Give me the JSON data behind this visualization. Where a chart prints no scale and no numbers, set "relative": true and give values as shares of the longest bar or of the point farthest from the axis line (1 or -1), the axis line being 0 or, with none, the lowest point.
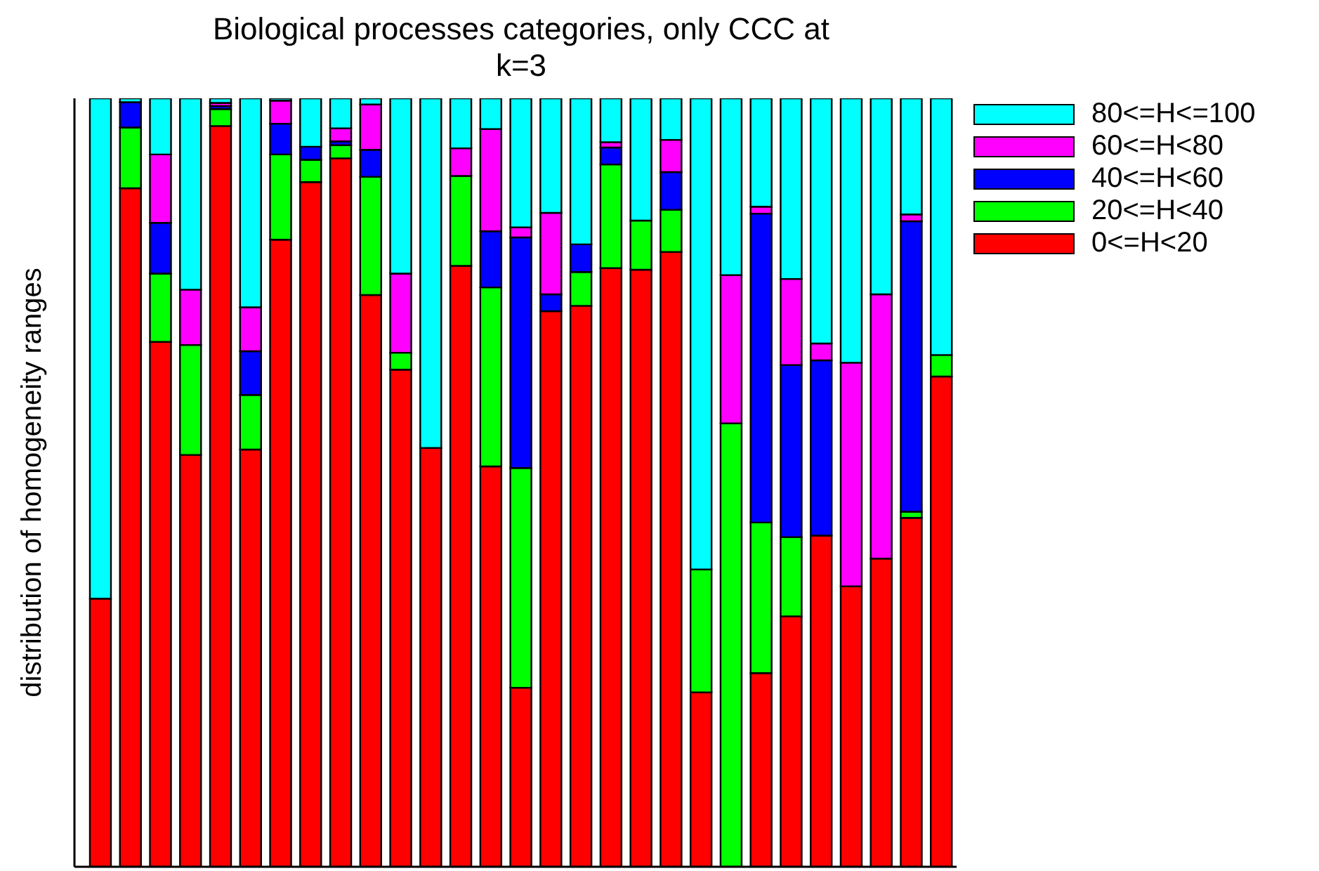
{
  "chart_data": {
    "type": "bar",
    "title": "Biological processes categories, only CCC at k=3",
    "ylabel": "distribution of homogeneity ranges",
    "relative": true,
    "stacked": true,
    "legend": "top right",
    "categories": [
      null,
      null,
      null,
      null,
      null,
      null,
      null,
      null,
      null,
      null,
      null,
      null,
      null,
      null,
      null,
      null,
      null,
      null,
      null,
      null,
      null,
      null,
      null,
      null,
      null,
      null,
      null,
      null,
      null
    ],
    "series": [
      {
        "name": "0<=H<20",
        "color": "#ff0000",
        "values": [
          0.349,
          0.883,
          0.683,
          0.536,
          0.964,
          0.543,
          0.816,
          0.891,
          0.922,
          0.744,
          0.647,
          0.545,
          0.782,
          0.521,
          0.233,
          0.723,
          0.73,
          0.779,
          0.777,
          0.8,
          0.227,
          0,
          0.252,
          0.326,
          0.431,
          0.365,
          0.401,
          0.454,
          0.638
        ]
      },
      {
        "name": "20<=H<40",
        "color": "#00ff00",
        "values": [
          0,
          0.079,
          0.089,
          0.143,
          0.022,
          0.071,
          0.111,
          0.029,
          0.017,
          0.154,
          0.022,
          0,
          0.117,
          0.233,
          0.286,
          0,
          0.044,
          0.135,
          0.064,
          0.055,
          0.16,
          0.577,
          0.196,
          0.103,
          0,
          0,
          0,
          0.008,
          0.028
        ]
      },
      {
        "name": "40<=H<60",
        "color": "#0000ff",
        "values": [
          0,
          0.033,
          0.066,
          0,
          0.004,
          0.057,
          0.04,
          0.017,
          0.005,
          0.035,
          0,
          0,
          0,
          0.073,
          0.3,
          0.022,
          0.036,
          0.022,
          0,
          0.049,
          0,
          0,
          0.402,
          0.224,
          0.228,
          0,
          0,
          0.378,
          0
        ]
      },
      {
        "name": "60<=H<80",
        "color": "#ff00ff",
        "values": [
          0,
          0,
          0.089,
          0.072,
          0.004,
          0.057,
          0.03,
          0,
          0.017,
          0.059,
          0.103,
          0,
          0.036,
          0.133,
          0.013,
          0.106,
          0,
          0.007,
          0,
          0.042,
          0,
          0.193,
          0.009,
          0.112,
          0.022,
          0.291,
          0.344,
          0.009,
          0
        ]
      },
      {
        "name": "80<=H<=100",
        "color": "#00ffff",
        "values": [
          0.651,
          0.005,
          0.073,
          0.249,
          0.006,
          0.272,
          0.003,
          0.063,
          0.039,
          0.008,
          0.228,
          0.455,
          0.065,
          0.04,
          0.168,
          0.149,
          0.19,
          0.057,
          0.159,
          0.054,
          0.613,
          0.23,
          0.141,
          0.235,
          0.319,
          0.344,
          0.255,
          0.151,
          0.334
        ]
      }
    ]
  }
}
